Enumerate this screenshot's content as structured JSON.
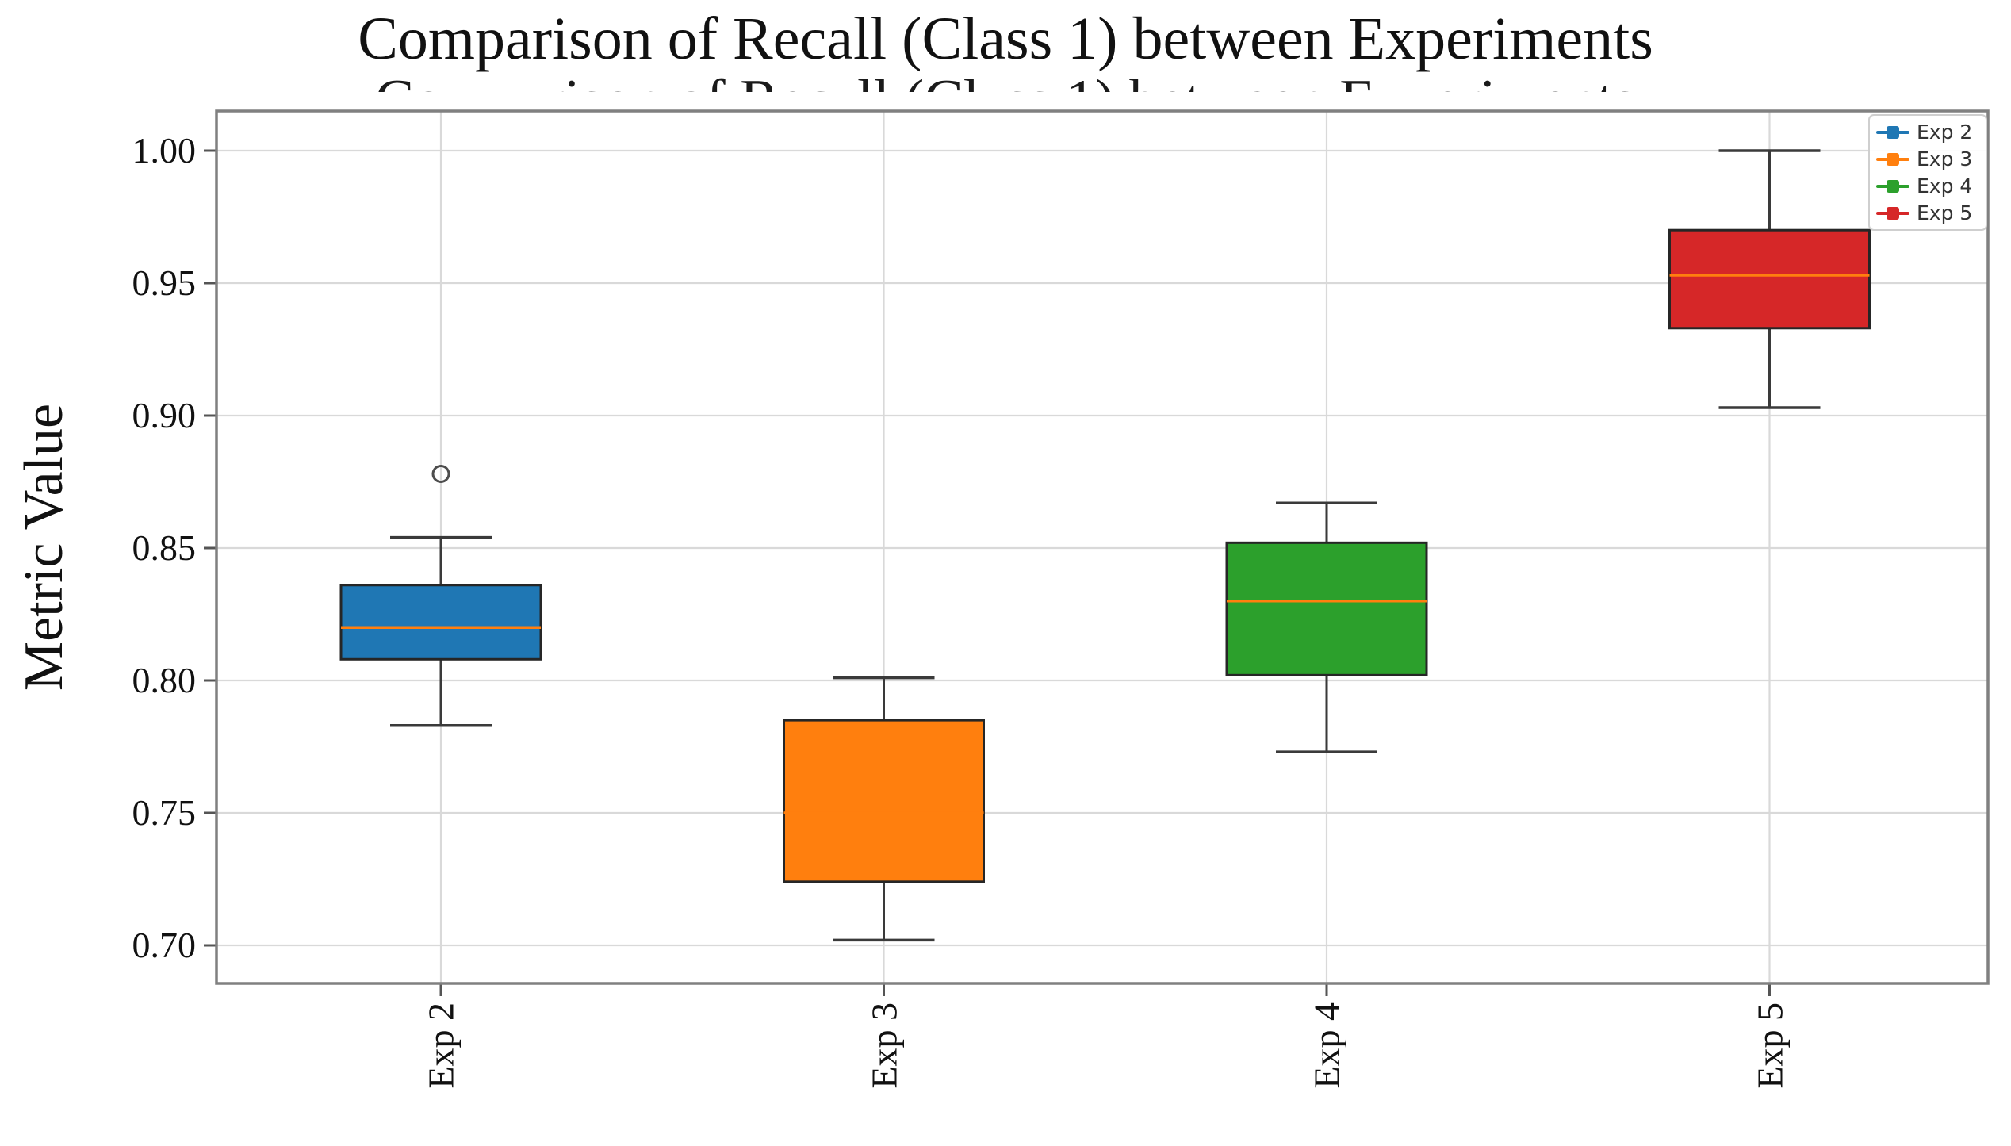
{
  "chart_data": {
    "type": "boxplot",
    "title": "Comparison of Recall (Class 1) between Experiments",
    "cropped_second_title": "Comparison of Recall (Class 1) between Experiments",
    "ylabel": "Metric Value",
    "xlabel": "",
    "categories": [
      "Exp 2",
      "Exp 3",
      "Exp 4",
      "Exp 5"
    ],
    "series": [
      {
        "name": "Exp 2",
        "color": "#1f77b4",
        "whisker_low": 0.783,
        "q1": 0.808,
        "median": 0.82,
        "q3": 0.836,
        "whisker_high": 0.854,
        "outliers": [
          0.878
        ]
      },
      {
        "name": "Exp 3",
        "color": "#ff7f0e",
        "whisker_low": 0.702,
        "q1": 0.724,
        "median": 0.75,
        "q3": 0.785,
        "whisker_high": 0.801,
        "outliers": []
      },
      {
        "name": "Exp 4",
        "color": "#2ca02c",
        "whisker_low": 0.773,
        "q1": 0.802,
        "median": 0.83,
        "q3": 0.852,
        "whisker_high": 0.867,
        "outliers": []
      },
      {
        "name": "Exp 5",
        "color": "#d62728",
        "whisker_low": 0.903,
        "q1": 0.933,
        "median": 0.953,
        "q3": 0.97,
        "whisker_high": 1.0,
        "outliers": []
      }
    ],
    "ytick_labels": [
      "1.00",
      "0.95",
      "0.90",
      "0.85",
      "0.80",
      "0.75",
      "0.70"
    ],
    "yticks": [
      1.0,
      0.95,
      0.9,
      0.85,
      0.8,
      0.75,
      0.7
    ],
    "ylim": [
      0.686,
      1.016
    ],
    "grid": true,
    "median_color": "#ff7f0e",
    "whisker_color": "#3a3a3a",
    "box_edge_color": "#262626",
    "spine_color": "#808080",
    "grid_color": "#d9d9d9",
    "legend": {
      "position": "upper right",
      "entries": [
        {
          "label": "Exp 2",
          "color": "#1f77b4"
        },
        {
          "label": "Exp 3",
          "color": "#ff7f0e"
        },
        {
          "label": "Exp 4",
          "color": "#2ca02c"
        },
        {
          "label": "Exp 5",
          "color": "#d62728"
        }
      ]
    }
  }
}
